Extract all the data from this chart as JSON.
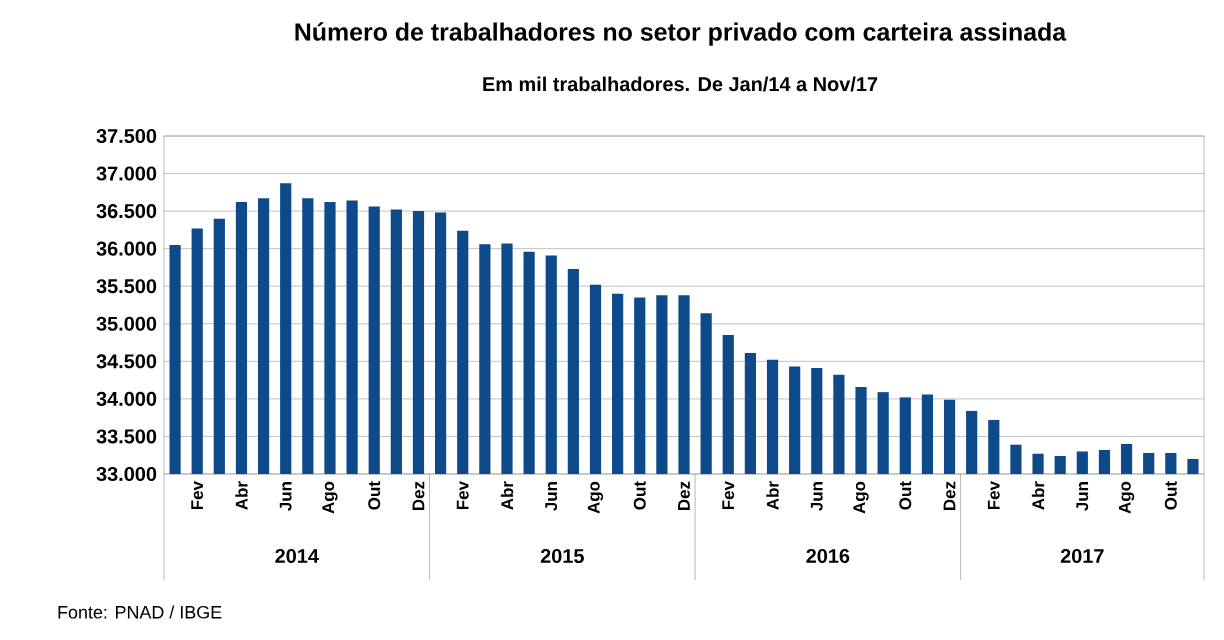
{
  "chart_data": {
    "type": "bar",
    "title": "Número de trabalhadores no setor privado com carteira assinada",
    "subtitle": "Em mil trabalhadores. De Jan/14 a Nov/17",
    "categories": [
      null,
      "Fev",
      null,
      "Abr",
      null,
      "Jun",
      null,
      "Ago",
      null,
      "Out",
      null,
      "Dez",
      null,
      "Fev",
      null,
      "Abr",
      null,
      "Jun",
      null,
      "Ago",
      null,
      "Out",
      null,
      "Dez",
      null,
      "Fev",
      null,
      "Abr",
      null,
      "Jun",
      null,
      "Ago",
      null,
      "Out",
      null,
      "Dez",
      null,
      "Fev",
      null,
      "Abr",
      null,
      "Jun",
      null,
      "Ago",
      null,
      "Out",
      null
    ],
    "values": [
      36050,
      36270,
      36400,
      36620,
      36670,
      36870,
      36670,
      36620,
      36640,
      36560,
      36520,
      36500,
      36480,
      36240,
      36060,
      36070,
      35960,
      35910,
      35730,
      35520,
      35400,
      35350,
      35380,
      35380,
      35140,
      34850,
      34610,
      34520,
      34430,
      34410,
      34320,
      34160,
      34090,
      34020,
      34060,
      33990,
      33840,
      33720,
      33390,
      33270,
      33240,
      33300,
      33320,
      33400,
      33280,
      33280,
      33200
    ],
    "color": "#0e4a8a",
    "ylim": [
      33000,
      37500
    ],
    "yticks": [
      {
        "value": 33000,
        "label": "33.000"
      },
      {
        "value": 33500,
        "label": "33.500"
      },
      {
        "value": 34000,
        "label": "34.000"
      },
      {
        "value": 34500,
        "label": "34.500"
      },
      {
        "value": 35000,
        "label": "35.000"
      },
      {
        "value": 35500,
        "label": "35.500"
      },
      {
        "value": 36000,
        "label": "36.000"
      },
      {
        "value": 36500,
        "label": "36.500"
      },
      {
        "value": 37000,
        "label": "37.000"
      },
      {
        "value": 37500,
        "label": "37.500"
      }
    ],
    "grid": "y",
    "annotations": [
      "2014",
      "2015",
      "2016",
      "2017",
      "Fonte: PNAD / IBGE"
    ]
  }
}
